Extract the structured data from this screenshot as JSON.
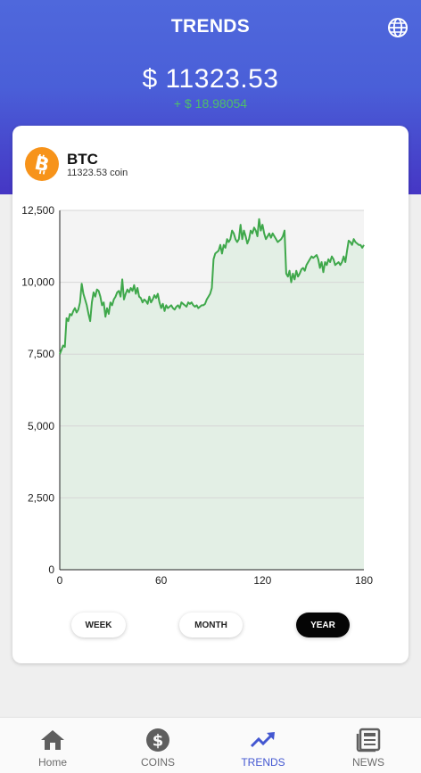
{
  "header": {
    "title": "TRENDS",
    "balance": "$ 11323.53",
    "change": "+ $ 18.98054",
    "globe_icon": "globe-icon"
  },
  "coin": {
    "icon": "bitcoin-icon",
    "symbol": "BTC",
    "amount_label": "11323.53 coin"
  },
  "range_buttons": [
    {
      "label": "WEEK",
      "active": false
    },
    {
      "label": "MONTH",
      "active": false
    },
    {
      "label": "YEAR",
      "active": true
    }
  ],
  "nav": [
    {
      "label": "Home",
      "icon": "home-icon",
      "active": false
    },
    {
      "label": "COINS",
      "icon": "dollar-coin-icon",
      "active": false
    },
    {
      "label": "TRENDS",
      "icon": "trending-up-icon",
      "active": true
    },
    {
      "label": "NEWS",
      "icon": "newspaper-icon",
      "active": false
    }
  ],
  "colors": {
    "header_top": "#4f68dc",
    "header_bottom": "#4536c4",
    "line": "#3fa84b",
    "fill": "#e3efe5",
    "plot_bg": "#f4f4f4",
    "nav_active": "#4357d1",
    "change": "#4fbf6a",
    "coin": "#f7931a"
  },
  "chart_data": {
    "type": "area",
    "title": "",
    "xlabel": "",
    "ylabel": "",
    "xlim": [
      0,
      180
    ],
    "ylim": [
      0,
      12500
    ],
    "x_ticks": [
      0,
      60,
      120,
      180
    ],
    "y_ticks": [
      0,
      2500,
      5000,
      7500,
      10000,
      12500
    ],
    "x_tick_labels": [
      "0",
      "60",
      "120",
      "180"
    ],
    "y_tick_labels": [
      "0",
      "2,500",
      "5,000",
      "7,500",
      "10,000",
      "12,500"
    ],
    "grid": "horizontal",
    "series": [
      {
        "x": [
          0,
          2,
          3,
          4,
          5,
          6,
          7,
          8,
          9,
          10,
          11,
          12,
          13,
          14,
          15,
          16,
          17,
          18,
          19,
          20,
          21,
          22,
          23,
          24,
          25,
          26,
          27,
          28,
          29,
          30,
          31,
          32,
          33,
          34,
          35,
          36,
          37,
          38,
          39,
          40,
          41,
          42,
          43,
          44,
          45,
          46,
          47,
          48,
          49,
          50,
          51,
          52,
          53,
          54,
          55,
          56,
          57,
          58,
          59,
          60,
          61,
          62,
          63,
          64,
          65,
          66,
          67,
          68,
          69,
          70,
          71,
          72,
          73,
          74,
          75,
          76,
          77,
          78,
          79,
          80,
          81,
          82,
          83,
          84,
          85,
          86,
          87,
          88,
          89,
          90,
          91,
          92,
          94,
          95,
          96,
          97,
          98,
          99,
          100,
          101,
          102,
          103,
          104,
          105,
          106,
          107,
          108,
          109,
          110,
          111,
          112,
          113,
          114,
          115,
          116,
          117,
          118,
          119,
          120,
          121,
          122,
          123,
          124,
          125,
          126,
          127,
          128,
          129,
          130,
          131,
          132,
          133,
          134,
          135,
          136,
          137,
          138,
          139,
          140,
          141,
          142,
          143,
          144,
          145,
          146,
          147,
          148,
          149,
          150,
          151,
          152,
          153,
          154,
          155,
          156,
          157,
          158,
          159,
          160,
          161,
          162,
          163,
          164,
          165,
          166,
          167,
          168,
          169,
          170,
          171,
          172,
          173,
          174,
          175,
          176,
          177,
          178,
          179,
          180
        ],
        "values": [
          7500,
          7800,
          7750,
          8750,
          8650,
          8900,
          8850,
          9000,
          9100,
          8950,
          9050,
          9300,
          9950,
          9600,
          9400,
          9200,
          8900,
          8650,
          9300,
          9650,
          9500,
          9750,
          9700,
          9500,
          9200,
          9300,
          8800,
          9100,
          8900,
          9300,
          9200,
          9400,
          9500,
          9650,
          9700,
          9500,
          10100,
          9400,
          9600,
          9750,
          9650,
          9800,
          9700,
          9900,
          9600,
          9800,
          9500,
          9450,
          9300,
          9400,
          9350,
          9250,
          9500,
          9300,
          9400,
          9550,
          9450,
          9600,
          9300,
          9100,
          9250,
          9000,
          9200,
          9100,
          9150,
          9200,
          9100,
          9050,
          9150,
          9200,
          9100,
          9300,
          9250,
          9200,
          9150,
          9300,
          9250,
          9300,
          9200,
          9150,
          9200,
          9100,
          9150,
          9200,
          9200,
          9250,
          9400,
          9500,
          9600,
          9800,
          10800,
          11000,
          11100,
          11300,
          11000,
          11300,
          11200,
          11500,
          11400,
          11500,
          11800,
          11700,
          11500,
          11400,
          11500,
          12000,
          11500,
          11800,
          11600,
          11350,
          11500,
          11800,
          11700,
          11900,
          11800,
          11600,
          12200,
          11800,
          12000,
          11700,
          11500,
          11600,
          11700,
          11550,
          11700,
          11600,
          11500,
          11400,
          11450,
          11500,
          11600,
          11800,
          10300,
          10200,
          10400,
          10000,
          10300,
          10100,
          10400,
          10200,
          10300,
          10450,
          10500,
          10400,
          10600,
          10700,
          10800,
          10900,
          10850,
          10900,
          10950,
          10800,
          10500,
          10700,
          10350,
          10700,
          10600,
          10800,
          10700,
          10900,
          10800,
          10600,
          10650,
          10700,
          10600,
          10700,
          10900,
          10700,
          11100,
          11450,
          11400,
          11300,
          11500,
          11400,
          11350,
          11300,
          11300,
          11200,
          11300
        ]
      }
    ]
  }
}
